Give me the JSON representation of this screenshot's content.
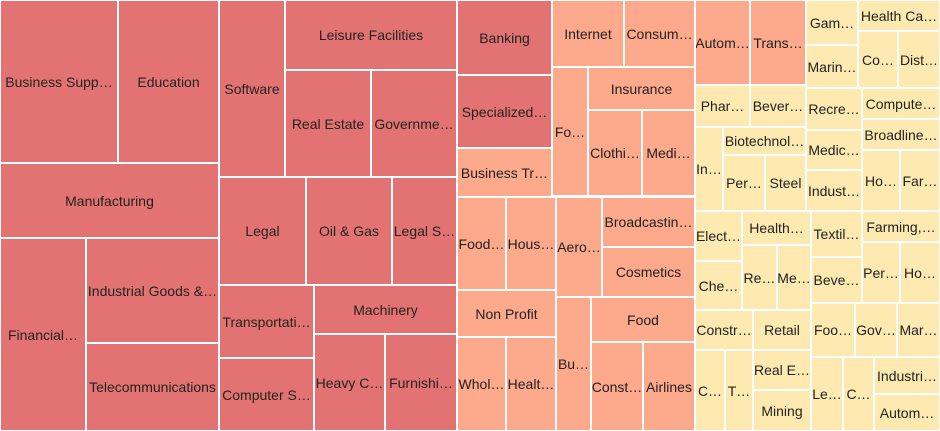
{
  "chart_data": {
    "type": "treemap",
    "title": "",
    "groups": {
      "high": {
        "color": "#e37373"
      },
      "medium": {
        "color": "#fda98c"
      },
      "low": {
        "color": "#feeab0"
      }
    },
    "tiles": [
      {
        "label": "Business Supp…",
        "group": "high"
      },
      {
        "label": "Education",
        "group": "high"
      },
      {
        "label": "Manufacturing",
        "group": "high"
      },
      {
        "label": "Financial…",
        "group": "high"
      },
      {
        "label": "Industrial Goods &…",
        "group": "high"
      },
      {
        "label": "Telecommunications",
        "group": "high"
      },
      {
        "label": "Software",
        "group": "high"
      },
      {
        "label": "Leisure Facilities",
        "group": "high"
      },
      {
        "label": "Real Estate",
        "group": "high"
      },
      {
        "label": "Governme…",
        "group": "high"
      },
      {
        "label": "Legal",
        "group": "high"
      },
      {
        "label": "Oil & Gas",
        "group": "high"
      },
      {
        "label": "Legal S…",
        "group": "high"
      },
      {
        "label": "Transportati…",
        "group": "high"
      },
      {
        "label": "Computer S…",
        "group": "high"
      },
      {
        "label": "Machinery",
        "group": "high"
      },
      {
        "label": "Heavy C…",
        "group": "high"
      },
      {
        "label": "Furnishi…",
        "group": "high"
      },
      {
        "label": "Banking",
        "group": "high"
      },
      {
        "label": "Specialized…",
        "group": "high"
      },
      {
        "label": "Business Tr…",
        "group": "medium"
      },
      {
        "label": "Internet",
        "group": "medium"
      },
      {
        "label": "Consum…",
        "group": "medium"
      },
      {
        "label": "Fo…",
        "group": "medium"
      },
      {
        "label": "Insurance",
        "group": "medium"
      },
      {
        "label": "Clothi…",
        "group": "medium"
      },
      {
        "label": "Medi…",
        "group": "medium"
      },
      {
        "label": "Food…",
        "group": "medium"
      },
      {
        "label": "Hous…",
        "group": "medium"
      },
      {
        "label": "Aero…",
        "group": "medium"
      },
      {
        "label": "Broadcastin…",
        "group": "medium"
      },
      {
        "label": "Cosmetics",
        "group": "medium"
      },
      {
        "label": "Non Profit",
        "group": "medium"
      },
      {
        "label": "Whol…",
        "group": "medium"
      },
      {
        "label": "Healt…",
        "group": "medium"
      },
      {
        "label": "Bu…",
        "group": "medium"
      },
      {
        "label": "Food",
        "group": "medium"
      },
      {
        "label": "Const…",
        "group": "medium"
      },
      {
        "label": "Airlines",
        "group": "medium"
      },
      {
        "label": "Autom…",
        "group": "medium"
      },
      {
        "label": "Trans…",
        "group": "medium"
      },
      {
        "label": "Gam…",
        "group": "low"
      },
      {
        "label": "Marin…",
        "group": "low"
      },
      {
        "label": "Health Ca…",
        "group": "low"
      },
      {
        "label": "Co…",
        "group": "low"
      },
      {
        "label": "Dist…",
        "group": "low"
      },
      {
        "label": "Phar…",
        "group": "low"
      },
      {
        "label": "Bever…",
        "group": "low"
      },
      {
        "label": "Recre…",
        "group": "low"
      },
      {
        "label": "Compute…",
        "group": "low"
      },
      {
        "label": "Broadline…",
        "group": "low"
      },
      {
        "label": "In…",
        "group": "low"
      },
      {
        "label": "Biotechnol…",
        "group": "low"
      },
      {
        "label": "Per…",
        "group": "low"
      },
      {
        "label": "Steel",
        "group": "low"
      },
      {
        "label": "Medic…",
        "group": "low"
      },
      {
        "label": "Indust…",
        "group": "low"
      },
      {
        "label": "Ho…",
        "group": "low"
      },
      {
        "label": "Far…",
        "group": "low"
      },
      {
        "label": "Elect…",
        "group": "low"
      },
      {
        "label": "Health…",
        "group": "low"
      },
      {
        "label": "Che…",
        "group": "low"
      },
      {
        "label": "Re…",
        "group": "low"
      },
      {
        "label": "Me…",
        "group": "low"
      },
      {
        "label": "Textil…",
        "group": "low"
      },
      {
        "label": "Farming,…",
        "group": "low"
      },
      {
        "label": "Beve…",
        "group": "low"
      },
      {
        "label": "Per…",
        "group": "low"
      },
      {
        "label": "Ho…",
        "group": "low"
      },
      {
        "label": "Constr…",
        "group": "low"
      },
      {
        "label": "Retail",
        "group": "low"
      },
      {
        "label": "C…",
        "group": "low"
      },
      {
        "label": "T…",
        "group": "low"
      },
      {
        "label": "Real E…",
        "group": "low"
      },
      {
        "label": "Mining",
        "group": "low"
      },
      {
        "label": "Foo…",
        "group": "low"
      },
      {
        "label": "Gov…",
        "group": "low"
      },
      {
        "label": "Mar…",
        "group": "low"
      },
      {
        "label": "Le…",
        "group": "low"
      },
      {
        "label": "C…",
        "group": "low"
      },
      {
        "label": "Industri…",
        "group": "low"
      },
      {
        "label": "Autom…",
        "group": "low"
      }
    ]
  }
}
